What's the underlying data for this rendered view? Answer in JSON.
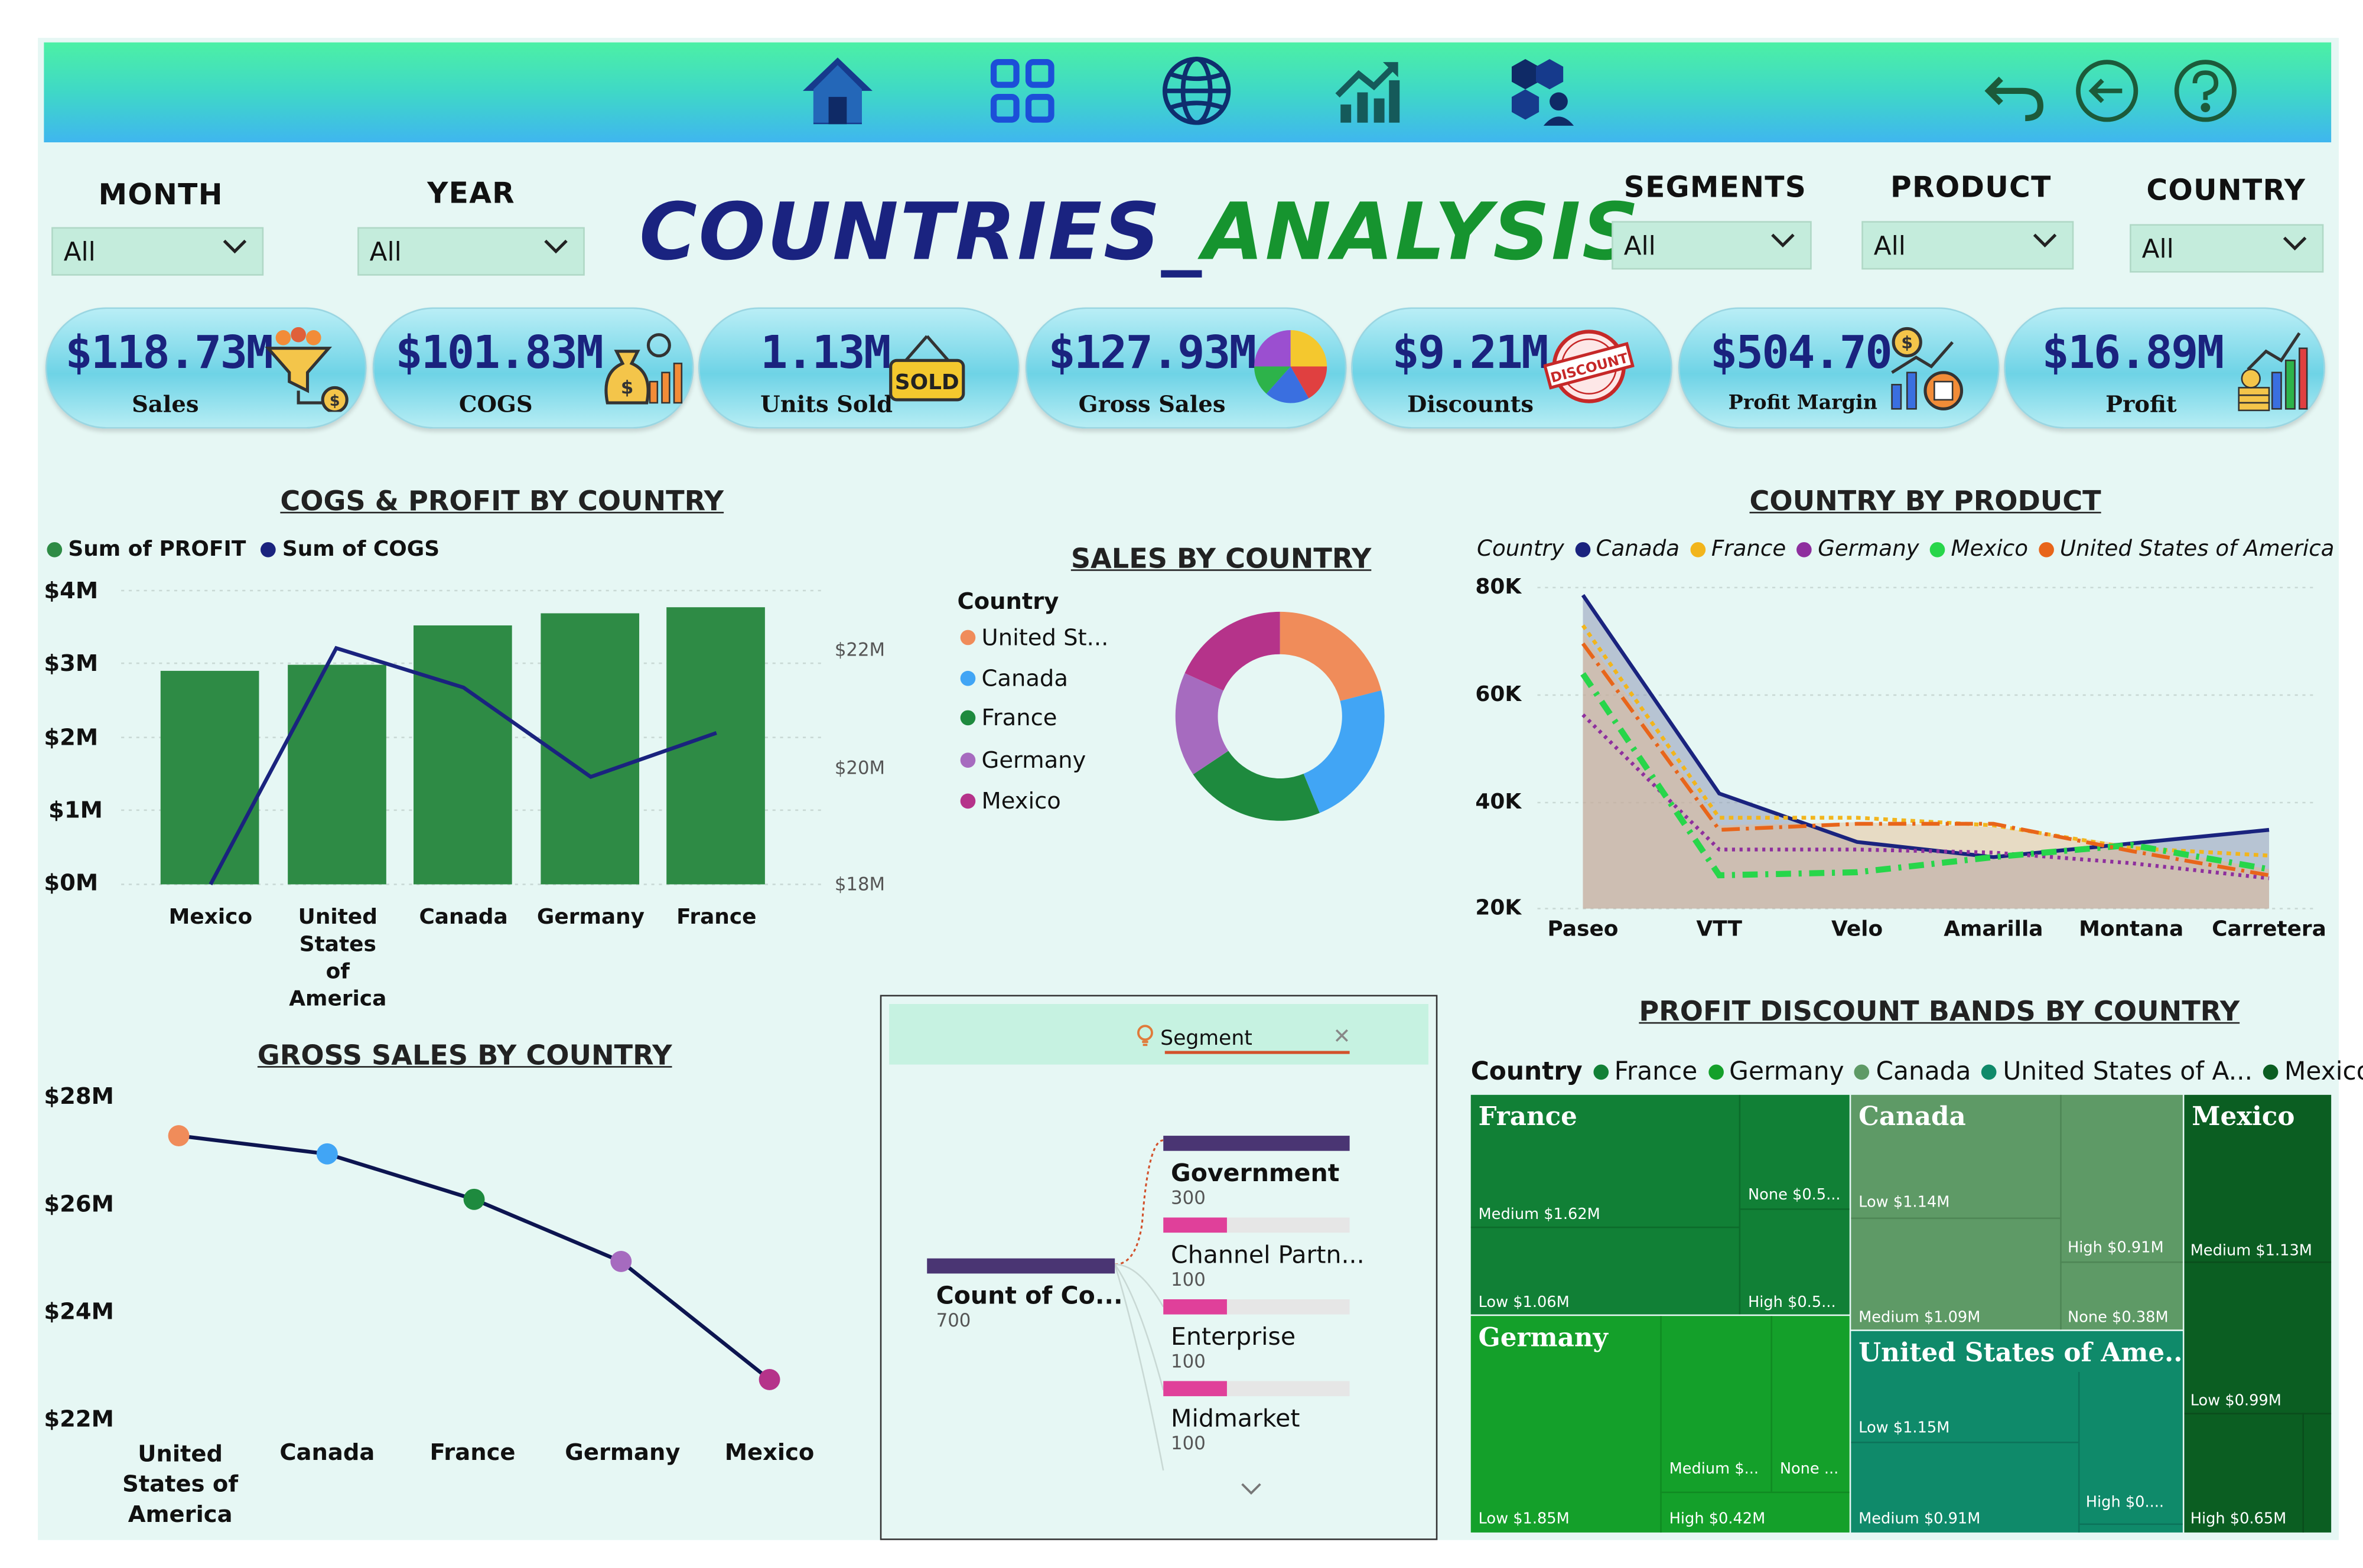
{
  "header": {
    "title_part1": "COUNTRIES_",
    "title_part2": "ANALYSIS"
  },
  "nav_icons": [
    "home-icon",
    "grid-icon",
    "globe-icon",
    "growth-chart-icon",
    "team-icon"
  ],
  "nav_right_icons": [
    "undo-icon",
    "back-icon",
    "help-icon"
  ],
  "filters": [
    {
      "label": "MONTH",
      "value": "All"
    },
    {
      "label": "YEAR",
      "value": "All"
    },
    {
      "label": "SEGMENTS",
      "value": "All"
    },
    {
      "label": "PRODUCT",
      "value": "All"
    },
    {
      "label": "COUNTRY",
      "value": "All"
    }
  ],
  "kpis": [
    {
      "value": "$118.73M",
      "label": "Sales",
      "icon": "funnel-icon"
    },
    {
      "value": "$101.83M",
      "label": "COGS",
      "icon": "money-bag-icon"
    },
    {
      "value": "1.13M",
      "label": "Units Sold",
      "icon": "sold-sign-icon",
      "icon_text": "SOLD"
    },
    {
      "value": "$127.93M",
      "label": "Gross Sales",
      "icon": "pie-icon"
    },
    {
      "value": "$9.21M",
      "label": "Discounts",
      "icon": "discount-stamp-icon",
      "icon_text": "DISCOUNT"
    },
    {
      "value": "$504.70",
      "label": "Profit Margin",
      "icon": "margin-chart-icon"
    },
    {
      "value": "$16.89M",
      "label": "Profit",
      "icon": "coins-growth-icon"
    }
  ],
  "cogs_profit": {
    "title": "COGS & PROFIT BY COUNTRY",
    "legend": [
      "Sum of PROFIT",
      "Sum of  COGS"
    ],
    "y_left_ticks": [
      "$4M",
      "$3M",
      "$2M",
      "$1M",
      "$0M"
    ],
    "y_right_ticks": [
      "$22M",
      "$20M",
      "$18M"
    ],
    "categories": [
      "Mexico",
      "United States of America",
      "Canada",
      "Germany",
      "France"
    ],
    "colors": {
      "bar": "#2e8b45",
      "line": "#1a237e"
    }
  },
  "sales_by_country": {
    "title": "SALES BY COUNTRY",
    "legend_title": "Country",
    "legend": [
      {
        "name": "United St...",
        "color": "#f08c5a"
      },
      {
        "name": "Canada",
        "color": "#41a5f5"
      },
      {
        "name": "France",
        "color": "#1e8a3e"
      },
      {
        "name": "Germany",
        "color": "#a66bbf"
      },
      {
        "name": "Mexico",
        "color": "#b5338a"
      }
    ]
  },
  "country_by_product": {
    "title": "COUNTRY BY PRODUCT",
    "legend_title": "Country",
    "legend": [
      {
        "name": "Canada",
        "color": "#1a237e"
      },
      {
        "name": "France",
        "color": "#f2b51c"
      },
      {
        "name": "Germany",
        "color": "#8e2f9e"
      },
      {
        "name": "Mexico",
        "color": "#27d64a"
      },
      {
        "name": "United States of America",
        "color": "#e8651a"
      }
    ],
    "y_ticks": [
      "80K",
      "60K",
      "40K",
      "20K"
    ],
    "categories": [
      "Paseo",
      "VTT",
      "Velo",
      "Amarilla",
      "Montana",
      "Carretera"
    ]
  },
  "gross_sales": {
    "title": "GROSS SALES BY COUNTRY",
    "y_ticks": [
      "$28M",
      "$26M",
      "$24M",
      "$22M"
    ],
    "categories": [
      "United States of America",
      "Canada",
      "France",
      "Germany",
      "Mexico"
    ],
    "point_colors": [
      "#f08c5a",
      "#41a5f5",
      "#1e8a3e",
      "#a66bbf",
      "#b5338a"
    ]
  },
  "decomposition": {
    "filter_label": "Segment",
    "root": {
      "label": "Count of Co...",
      "value": "700"
    },
    "nodes": [
      {
        "label": "Government",
        "value": "300"
      },
      {
        "label": "Channel Partn...",
        "value": "100"
      },
      {
        "label": "Enterprise",
        "value": "100"
      },
      {
        "label": "Midmarket",
        "value": "100"
      }
    ]
  },
  "treemap": {
    "title": "PROFIT DISCOUNT BANDS BY COUNTRY",
    "legend_title": "Country",
    "legend": [
      {
        "name": "France",
        "color": "#118036"
      },
      {
        "name": "Germany",
        "color": "#14a02a"
      },
      {
        "name": "Canada",
        "color": "#5e9a66"
      },
      {
        "name": "United States of A...",
        "color": "#0f8a6a"
      },
      {
        "name": "Mexico",
        "color": "#0b5e22"
      }
    ],
    "groups": {
      "france": {
        "name": "France",
        "cells": [
          "Medium $1.62M",
          "Low $1.06M",
          "None $0.5...",
          "High $0.5..."
        ]
      },
      "canada": {
        "name": "Canada",
        "cells": [
          "Low $1.14M",
          "High $0.91M",
          "Medium $1.09M",
          "None $0.38M"
        ]
      },
      "mexico": {
        "name": "Mexico",
        "cells": [
          "Medium $1.13M",
          "Low $0.99M",
          "High $0.65M"
        ]
      },
      "germany": {
        "name": "Germany",
        "cells": [
          "Low $1.85M",
          "Medium $...",
          "None ...",
          "High $0.42M"
        ]
      },
      "usa": {
        "name": "United States of Ame...",
        "cells": [
          "Low $1.15M",
          "Medium $0.91M",
          "High $0...."
        ]
      }
    }
  }
}
